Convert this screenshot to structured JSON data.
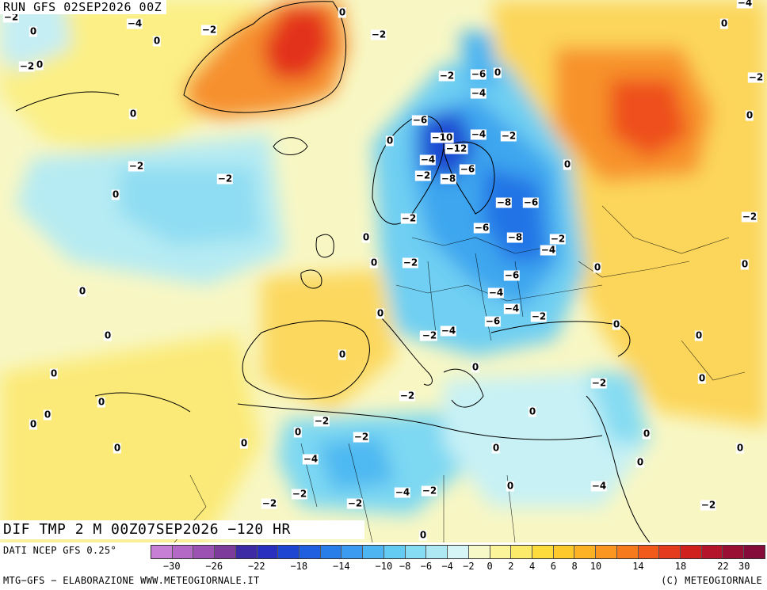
{
  "header": {
    "run_label": "RUN GFS 02SEP2026 00Z"
  },
  "title": {
    "text": "DIF TMP 2 M 00Z07SEP2026 −120 HR"
  },
  "footer": {
    "data_source": "DATI NCEP GFS 0.25°",
    "credit_left": "MTG−GFS − ELABORAZIONE WWW.METEOGIORNALE.IT",
    "credit_right": "(C) METEOGIORNALE"
  },
  "legend": {
    "colors": [
      "#c77fd6",
      "#b469c6",
      "#9b52b3",
      "#7d3b9b",
      "#3d2ba5",
      "#2930bf",
      "#1f46d2",
      "#1f5fe0",
      "#2a7eea",
      "#3b9bf0",
      "#4db6f2",
      "#64cbf2",
      "#86dcf2",
      "#aee9f3",
      "#d5f5f7",
      "#f7f8c8",
      "#fbf49a",
      "#fceb6b",
      "#fddc3c",
      "#fec92a",
      "#fdb124",
      "#fb9720",
      "#f77a1d",
      "#f25a1c",
      "#e43a1d",
      "#d0211f",
      "#b5152a",
      "#9a0f34",
      "#850c3a"
    ],
    "ticks": [
      "−30",
      "−26",
      "−22",
      "−18",
      "−14",
      "−10",
      "−8",
      "−6",
      "−4",
      "−2",
      "0",
      "2",
      "4",
      "6",
      "8",
      "10",
      "14",
      "18",
      "22",
      "30"
    ]
  },
  "map_values": [
    {
      "t": "−2"
    },
    {
      "t": "0"
    },
    {
      "t": "−4"
    },
    {
      "t": "0"
    },
    {
      "t": "−2"
    },
    {
      "t": "0"
    },
    {
      "t": "−2"
    },
    {
      "t": "−4"
    },
    {
      "t": "−2"
    },
    {
      "t": "0"
    },
    {
      "t": "−2"
    },
    {
      "t": "−6"
    },
    {
      "t": "0"
    },
    {
      "t": "−4"
    },
    {
      "t": "0"
    },
    {
      "t": "−6"
    },
    {
      "t": "−10"
    },
    {
      "t": "−4"
    },
    {
      "t": "−2"
    },
    {
      "t": "0"
    },
    {
      "t": "−12"
    },
    {
      "t": "−4"
    },
    {
      "t": "−6"
    },
    {
      "t": "−8"
    },
    {
      "t": "−2"
    },
    {
      "t": "0"
    },
    {
      "t": "−2"
    },
    {
      "t": "−2"
    },
    {
      "t": "0"
    },
    {
      "t": "−8"
    },
    {
      "t": "−6"
    },
    {
      "t": "−6"
    },
    {
      "t": "−8"
    },
    {
      "t": "−2"
    },
    {
      "t": "−4"
    },
    {
      "t": "0"
    },
    {
      "t": "−2"
    },
    {
      "t": "−6"
    },
    {
      "t": "0"
    },
    {
      "t": "−4"
    },
    {
      "t": "−4"
    },
    {
      "t": "0"
    },
    {
      "t": "−2"
    },
    {
      "t": "−6"
    },
    {
      "t": "−2"
    },
    {
      "t": "−4"
    },
    {
      "t": "0"
    },
    {
      "t": "0"
    },
    {
      "t": "0"
    },
    {
      "t": "−2"
    },
    {
      "t": "0"
    },
    {
      "t": "0"
    },
    {
      "t": "−2"
    },
    {
      "t": "0"
    },
    {
      "t": "0"
    },
    {
      "t": "0"
    },
    {
      "t": "0"
    },
    {
      "t": "−2"
    },
    {
      "t": "0"
    },
    {
      "t": "0"
    },
    {
      "t": "−2"
    },
    {
      "t": "0"
    },
    {
      "t": "−4"
    },
    {
      "t": "−2"
    },
    {
      "t": "0"
    },
    {
      "t": "0"
    },
    {
      "t": "−2"
    },
    {
      "t": "−4"
    },
    {
      "t": "−2"
    },
    {
      "t": "−2"
    },
    {
      "t": "−2"
    },
    {
      "t": "0"
    },
    {
      "t": "0"
    },
    {
      "t": "−2"
    },
    {
      "t": "0"
    },
    {
      "t": "0"
    },
    {
      "t": "0"
    },
    {
      "t": "0"
    },
    {
      "t": "0"
    },
    {
      "t": "0"
    },
    {
      "t": "0"
    },
    {
      "t": "0"
    },
    {
      "t": "0"
    },
    {
      "t": "−2"
    },
    {
      "t": "−2"
    },
    {
      "t": "−4"
    },
    {
      "t": "−2"
    },
    {
      "t": "0"
    },
    {
      "t": "0"
    }
  ]
}
